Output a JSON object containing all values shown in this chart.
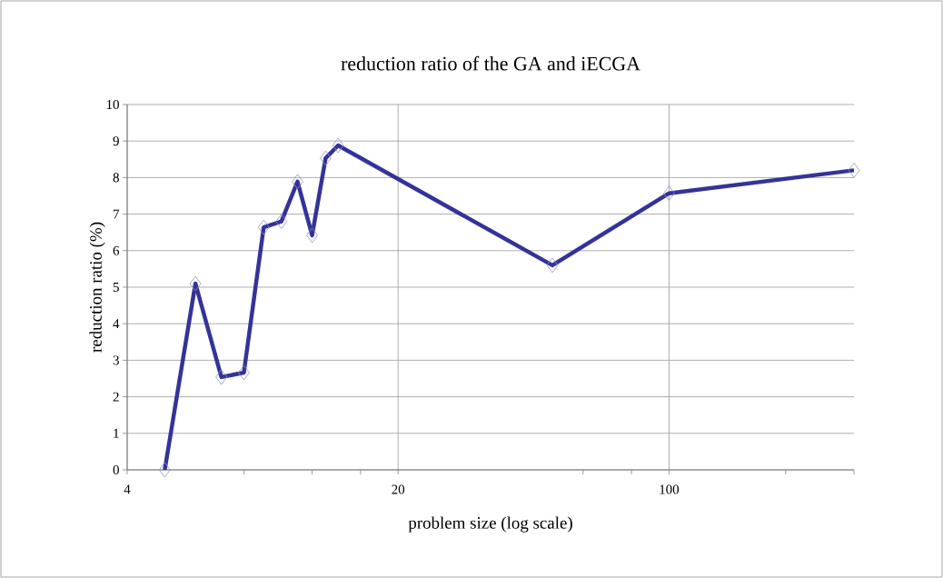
{
  "chart_data": {
    "type": "line",
    "title": "reduction ratio of the GA and iECGA",
    "xlabel": "problem size (log scale)",
    "ylabel": "reduction ratio (%)",
    "x": [
      5,
      6,
      7,
      8,
      9,
      10,
      11,
      12,
      13,
      14,
      50,
      100,
      300
    ],
    "series": [
      {
        "color": "#333399",
        "values": [
          0,
          5.1,
          2.54,
          2.66,
          6.64,
          6.8,
          7.89,
          6.42,
          8.53,
          8.88,
          5.6,
          7.57,
          8.2
        ]
      }
    ],
    "log": "x",
    "xlim": [
      4,
      300
    ],
    "xticks": [
      4,
      {
        "value": 8,
        "label": null
      },
      {
        "value": 12,
        "label": null
      },
      {
        "value": 16,
        "label": null
      },
      20,
      {
        "value": 60,
        "label": null
      },
      {
        "value": 80,
        "label": null
      },
      100,
      {
        "value": 200,
        "label": null
      },
      {
        "value": 300,
        "label": null
      }
    ],
    "ylim": [
      0,
      10
    ],
    "yticks": [
      0,
      1,
      2,
      3,
      4,
      5,
      6,
      7,
      8,
      9,
      10
    ],
    "grid": true,
    "marker": "diamond",
    "line_style": "solid"
  }
}
